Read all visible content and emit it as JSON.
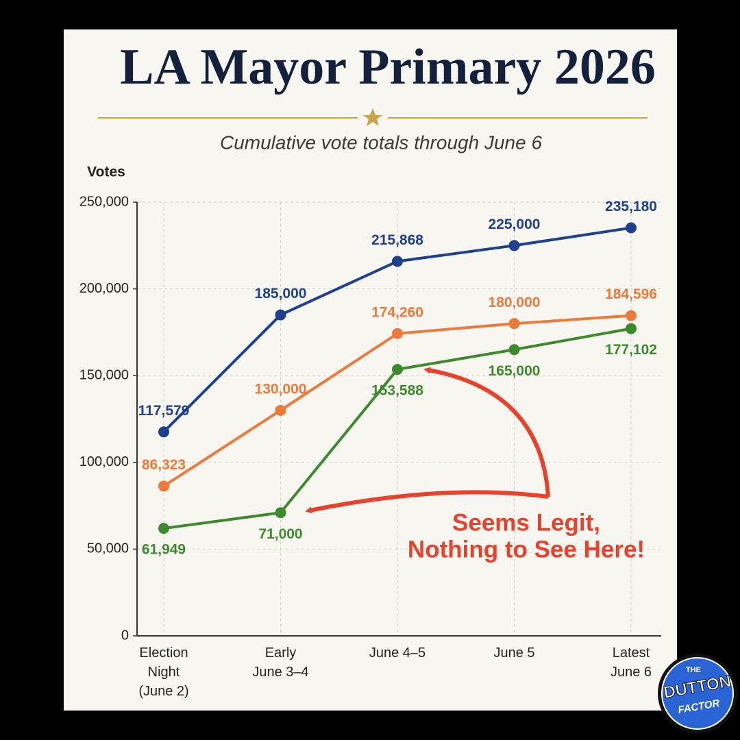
{
  "chart_data": {
    "type": "line",
    "title": "LA Mayor Primary 2026",
    "subtitle": "Cumulative vote totals through June 6",
    "y_label": "Votes",
    "categories": [
      "Election\nNight\n(June 2)",
      "Early\nJune 3–4",
      "June 4–5",
      "June 5",
      "Latest\nJune 6"
    ],
    "series": [
      {
        "color": "#1f3f8f",
        "values": [
          117579,
          185000,
          215868,
          225000,
          235180
        ],
        "value_labels": [
          "117,579",
          "185,000",
          "215,868",
          "225,000",
          "235,180"
        ]
      },
      {
        "color": "#ec7a3a",
        "values": [
          86323,
          130000,
          174260,
          180000,
          184596
        ],
        "value_labels": [
          "86,323",
          "130,000",
          "174,260",
          "180,000",
          "184,596"
        ]
      },
      {
        "color": "#3d8a2e",
        "values": [
          61949,
          71000,
          153588,
          165000,
          177102
        ],
        "value_labels": [
          "61,949",
          "71,000",
          "153,588",
          "165,000",
          "177,102"
        ]
      }
    ],
    "ylim": [
      0,
      250000
    ],
    "yticks": [
      0,
      {
        "value": 50000,
        "label": "50,000"
      },
      {
        "value": 100000,
        "label": "100,000"
      },
      {
        "value": 150000,
        "label": "150,000"
      },
      {
        "value": 200000,
        "label": "200,000"
      },
      {
        "value": 250000,
        "label": "250,000"
      }
    ],
    "grid": true,
    "annotation": [
      "Seems Legit,",
      "Nothing to See Here!"
    ]
  },
  "logo": {
    "lines": [
      "THE",
      "DUTTON",
      "FACTOR"
    ]
  }
}
